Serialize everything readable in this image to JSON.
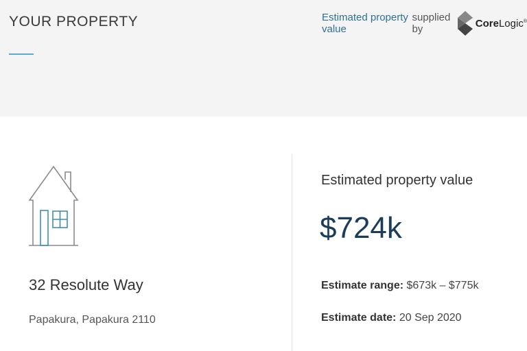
{
  "header": {
    "title": "YOUR PROPERTY",
    "supplied_highlight": "Estimated property value",
    "supplied_rest": "supplied by",
    "logo_text_bold": "Core",
    "logo_text_rest": "Logic",
    "logo_tm": "®"
  },
  "property": {
    "icon": "house-icon",
    "address": "32 Resolute Way",
    "suburb": "Papakura, Papakura 2110"
  },
  "estimate": {
    "label": "Estimated property value",
    "value": "$724k",
    "range_label": "Estimate range:",
    "range_value": "$673k – $775k",
    "date_label": "Estimate date:",
    "date_value": "20 Sep 2020"
  },
  "colors": {
    "accent": "#5aa9d1",
    "value": "#1c3d5a",
    "link": "#2e6f97"
  }
}
